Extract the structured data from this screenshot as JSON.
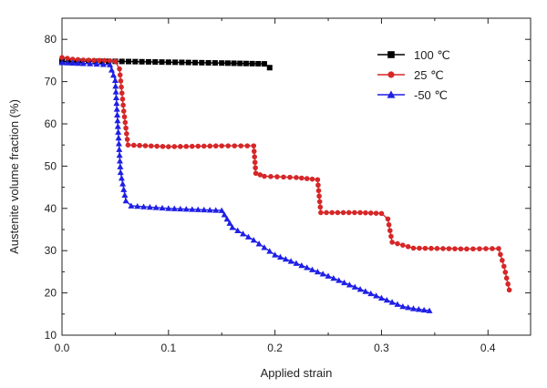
{
  "chart_data": {
    "type": "line",
    "title": "",
    "xlabel": "Applied strain",
    "ylabel": "Austenite volume fraction (%)",
    "xlim": [
      0.0,
      0.44
    ],
    "ylim": [
      10,
      85
    ],
    "x_ticks": [
      0.0,
      0.1,
      0.2,
      0.3,
      0.4
    ],
    "x_tick_labels": [
      "0.0",
      "0.1",
      "0.2",
      "0.3",
      "0.4"
    ],
    "y_ticks": [
      10,
      20,
      30,
      40,
      50,
      60,
      70,
      80
    ],
    "y_tick_labels": [
      "10",
      "20",
      "30",
      "40",
      "50",
      "60",
      "70",
      "80"
    ],
    "grid": false,
    "legend_position": "top-right",
    "series": [
      {
        "name": "100 ℃",
        "color": "#000000",
        "marker": "square",
        "points": [
          [
            0.0,
            74.8
          ],
          [
            0.05,
            74.8
          ],
          [
            0.1,
            74.6
          ],
          [
            0.15,
            74.4
          ],
          [
            0.19,
            74.2
          ],
          [
            0.195,
            73.3
          ]
        ]
      },
      {
        "name": "25 ℃",
        "color": "#d62728",
        "marker": "circle",
        "points": [
          [
            0.0,
            75.7
          ],
          [
            0.01,
            75.3
          ],
          [
            0.02,
            75.1
          ],
          [
            0.04,
            75.0
          ],
          [
            0.05,
            74.8
          ],
          [
            0.054,
            73.0
          ],
          [
            0.058,
            63.0
          ],
          [
            0.062,
            55.0
          ],
          [
            0.1,
            54.6
          ],
          [
            0.15,
            54.8
          ],
          [
            0.18,
            54.8
          ],
          [
            0.182,
            48.3
          ],
          [
            0.19,
            47.6
          ],
          [
            0.22,
            47.3
          ],
          [
            0.24,
            46.8
          ],
          [
            0.243,
            39.0
          ],
          [
            0.28,
            39.0
          ],
          [
            0.3,
            38.8
          ],
          [
            0.306,
            37.5
          ],
          [
            0.31,
            32.0
          ],
          [
            0.33,
            30.6
          ],
          [
            0.38,
            30.4
          ],
          [
            0.41,
            30.5
          ],
          [
            0.415,
            26.3
          ],
          [
            0.42,
            20.7
          ]
        ]
      },
      {
        "name": "-50 ℃",
        "color": "#1f1fe6",
        "marker": "triangle",
        "points": [
          [
            0.0,
            74.5
          ],
          [
            0.02,
            74.3
          ],
          [
            0.045,
            74.0
          ],
          [
            0.05,
            70.3
          ],
          [
            0.055,
            48.5
          ],
          [
            0.06,
            41.8
          ],
          [
            0.065,
            40.6
          ],
          [
            0.1,
            40.0
          ],
          [
            0.15,
            39.5
          ],
          [
            0.155,
            37.5
          ],
          [
            0.16,
            35.5
          ],
          [
            0.18,
            32.5
          ],
          [
            0.2,
            29.0
          ],
          [
            0.25,
            24.0
          ],
          [
            0.3,
            18.8
          ],
          [
            0.32,
            16.8
          ],
          [
            0.33,
            16.3
          ],
          [
            0.345,
            15.8
          ]
        ]
      }
    ]
  }
}
